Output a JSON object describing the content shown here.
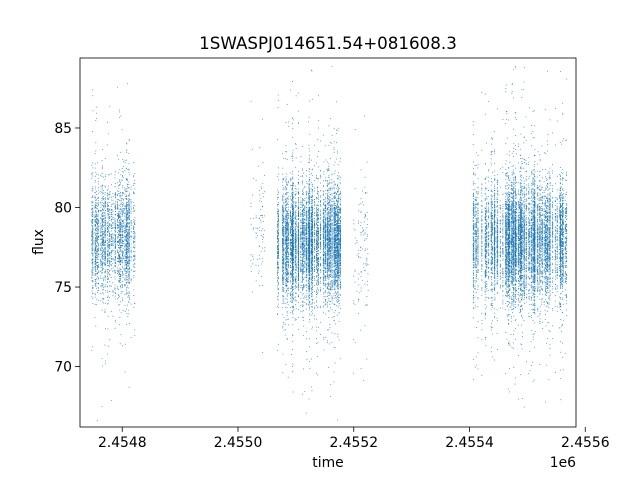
{
  "chart_data": {
    "type": "scatter",
    "title": "1SWASPJ014651.54+081608.3",
    "xlabel": "time",
    "ylabel": "flux",
    "x_offset_label": "1e6",
    "xlim": [
      2454727,
      2455584
    ],
    "ylim": [
      66.2,
      89.4
    ],
    "xticks": [
      {
        "value": 2454800,
        "label": "2.4548"
      },
      {
        "value": 2455000,
        "label": "2.4550"
      },
      {
        "value": 2455200,
        "label": "2.4552"
      },
      {
        "value": 2455400,
        "label": "2.4554"
      },
      {
        "value": 2455600,
        "label": "2.4556"
      }
    ],
    "yticks": [
      {
        "value": 70,
        "label": "70"
      },
      {
        "value": 75,
        "label": "75"
      },
      {
        "value": 80,
        "label": "80"
      },
      {
        "value": 85,
        "label": "85"
      }
    ],
    "grid": false,
    "marker_color": "#1f77b4",
    "series": [
      {
        "observing_seasons": [
          {
            "x_start": 2454740,
            "x_end": 2454822,
            "flux_center": 78.0,
            "flux_spread": 1.7,
            "point_count": 2600
          },
          {
            "x_start": 2455020,
            "x_end": 2455048,
            "flux_center": 78.5,
            "flux_spread": 2.2,
            "point_count": 90
          },
          {
            "x_start": 2455068,
            "x_end": 2455178,
            "flux_center": 77.8,
            "flux_spread": 1.6,
            "point_count": 7000
          },
          {
            "x_start": 2455200,
            "x_end": 2455225,
            "flux_center": 77.8,
            "flux_spread": 2.4,
            "point_count": 120
          },
          {
            "x_start": 2455405,
            "x_end": 2455568,
            "flux_center": 77.9,
            "flux_spread": 1.7,
            "point_count": 8600
          }
        ]
      }
    ]
  }
}
